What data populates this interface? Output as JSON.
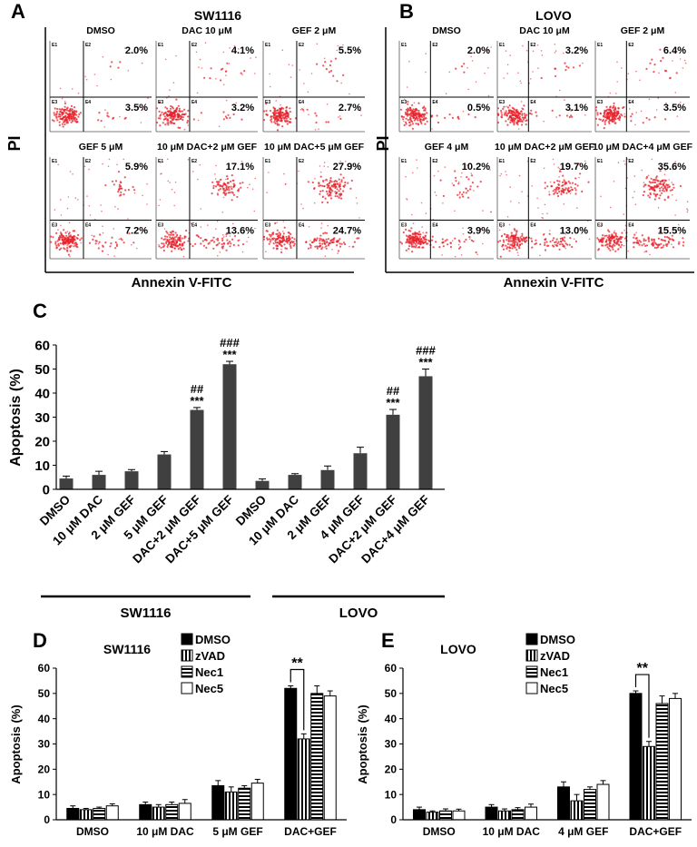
{
  "flow": [
    {
      "label": "A",
      "title": "SW1116",
      "y_label": "PI",
      "x_label": "Annexin V-FITC",
      "quadrant_labels": [
        "E1",
        "E2",
        "E3",
        "E4"
      ],
      "plots": [
        {
          "title": "DMSO",
          "upper": "2.0%",
          "lower": "3.5%"
        },
        {
          "title": "DAC 10 μM",
          "upper": "4.1%",
          "lower": "3.2%"
        },
        {
          "title": "GEF 2 μM",
          "upper": "5.5%",
          "lower": "2.7%"
        },
        {
          "title": "GEF 5 μM",
          "upper": "5.9%",
          "lower": "7.2%"
        },
        {
          "title": "10 μM DAC+2 μM GEF",
          "upper": "17.1%",
          "lower": "13.6%"
        },
        {
          "title": "10 μM DAC+5 μM GEF",
          "upper": "27.9%",
          "lower": "24.7%"
        }
      ]
    },
    {
      "label": "B",
      "title": "LOVO",
      "y_label": "PI",
      "x_label": "Annexin V-FITC",
      "quadrant_labels": [
        "E1",
        "E2",
        "E3",
        "E4"
      ],
      "plots": [
        {
          "title": "DMSO",
          "upper": "2.0%",
          "lower": "0.5%"
        },
        {
          "title": "DAC 10 μM",
          "upper": "3.2%",
          "lower": "3.1%"
        },
        {
          "title": "GEF 2 μM",
          "upper": "6.4%",
          "lower": "3.5%"
        },
        {
          "title": "GEF 4 μM",
          "upper": "10.2%",
          "lower": "3.9%"
        },
        {
          "title": "10 μM DAC+2 μM GEF",
          "upper": "19.7%",
          "lower": "13.0%"
        },
        {
          "title": "10 μM DAC+4 μM GEF",
          "upper": "35.6%",
          "lower": "15.5%"
        }
      ]
    }
  ],
  "chart_data": [
    {
      "type": "bar",
      "panel_label": "C",
      "y_label": "Apoptosis (%)",
      "categories": [
        "DMSO",
        "10 μM DAC",
        "2 μM GEF",
        "5 μM GEF",
        "DAC+2 μM GEF",
        "DAC+5 μM GEF",
        "DMSO",
        "10 μM DAC",
        "2 μM GEF",
        "4 μM GEF",
        "DAC+2 μM GEF",
        "DAC+4 μM GEF"
      ],
      "values": [
        4.5,
        6,
        7.5,
        14.5,
        33,
        52,
        3.5,
        6,
        8,
        15,
        31,
        47
      ],
      "errors": [
        1,
        1.5,
        0.7,
        1.2,
        1,
        1.2,
        0.8,
        0.5,
        1.7,
        2.5,
        2.2,
        3
      ],
      "color": "#404040",
      "ylim": [
        0,
        60
      ],
      "yticks": [
        0,
        10,
        20,
        30,
        40,
        50,
        60
      ],
      "groups": [
        "SW1116",
        "LOVO"
      ],
      "annotations": [
        "##",
        "***",
        "###",
        "***",
        "##",
        "***",
        "###",
        "***"
      ]
    },
    {
      "type": "grouped_bar",
      "panel_label": "D",
      "title": "SW1116",
      "y_label": "Apoptosis (%)",
      "categories": [
        "DMSO",
        "10 μM DAC",
        "5 μM GEF",
        "DAC+GEF"
      ],
      "series": [
        {
          "name": "DMSO",
          "color": "#000000",
          "pattern": "solid",
          "values": [
            4.5,
            6,
            13.5,
            52
          ],
          "errors": [
            1,
            1,
            2,
            1
          ]
        },
        {
          "name": "zVAD",
          "color": "#000000",
          "pattern": "vertical",
          "values": [
            4,
            5,
            11,
            32
          ],
          "errors": [
            0.5,
            1,
            2,
            2
          ]
        },
        {
          "name": "Nec1",
          "color": "#000000",
          "pattern": "horizontal",
          "values": [
            4.5,
            6,
            12.5,
            50
          ],
          "errors": [
            0.5,
            1,
            1,
            3
          ]
        },
        {
          "name": "Nec5",
          "color": "#000000",
          "pattern": "none",
          "values": [
            5.5,
            6.5,
            14.5,
            49
          ],
          "errors": [
            0.8,
            1.5,
            1.5,
            2
          ]
        }
      ],
      "ylim": [
        0,
        60
      ],
      "yticks": [
        0,
        10,
        20,
        30,
        40,
        50,
        60
      ],
      "annotation": "**"
    },
    {
      "type": "grouped_bar",
      "panel_label": "E",
      "title": "LOVO",
      "y_label": "Apoptosis (%)",
      "categories": [
        "DMSO",
        "10 μM DAC",
        "4 μM GEF",
        "DAC+GEF"
      ],
      "series": [
        {
          "name": "DMSO",
          "color": "#000000",
          "pattern": "solid",
          "values": [
            4,
            5,
            13,
            50
          ],
          "errors": [
            1,
            1,
            2,
            1
          ]
        },
        {
          "name": "zVAD",
          "color": "#000000",
          "pattern": "vertical",
          "values": [
            3,
            3.5,
            7.5,
            29
          ],
          "errors": [
            0.5,
            0.8,
            2.5,
            2
          ]
        },
        {
          "name": "Nec1",
          "color": "#000000",
          "pattern": "horizontal",
          "values": [
            3.5,
            4,
            12,
            46
          ],
          "errors": [
            0.8,
            0.8,
            1,
            3
          ]
        },
        {
          "name": "Nec5",
          "color": "#000000",
          "pattern": "none",
          "values": [
            3.5,
            5,
            14,
            48
          ],
          "errors": [
            0.7,
            1.2,
            1.5,
            2
          ]
        }
      ],
      "ylim": [
        0,
        60
      ],
      "yticks": [
        0,
        10,
        20,
        30,
        40,
        50,
        60
      ],
      "annotation": "**"
    }
  ]
}
